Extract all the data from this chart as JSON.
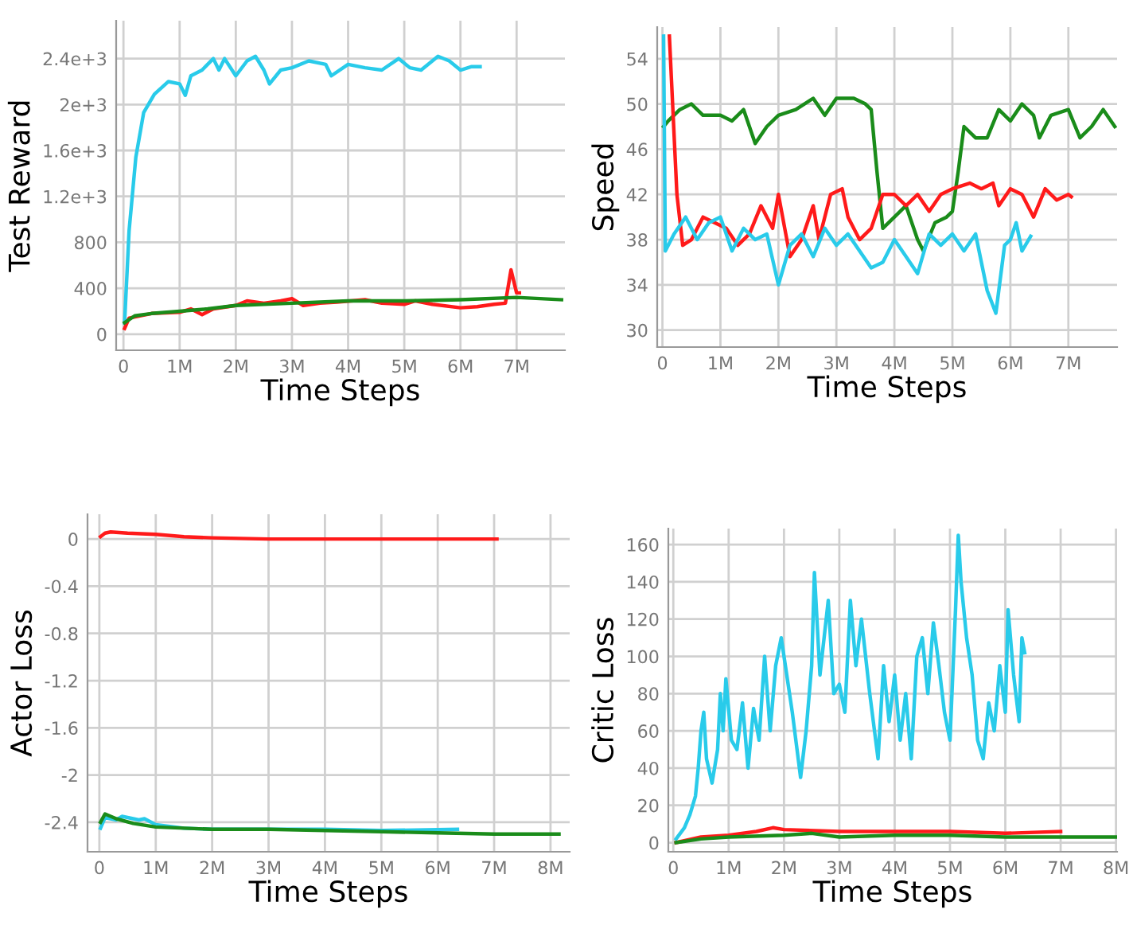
{
  "chart_data": [
    {
      "type": "line",
      "xlabel": "Time Steps",
      "ylabel": "Test Reward",
      "xlim": [
        -130000,
        7860000
      ],
      "ylim": [
        -140,
        2730
      ],
      "grid": true,
      "line_style": "solid",
      "xticks": [
        0,
        {
          "value": 1000000,
          "label": "1M"
        },
        {
          "value": 2000000,
          "label": "2M"
        },
        {
          "value": 3000000,
          "label": "3M"
        },
        {
          "value": 4000000,
          "label": "4M"
        },
        {
          "value": 5000000,
          "label": "5M"
        },
        {
          "value": 6000000,
          "label": "6M"
        },
        {
          "value": 7000000,
          "label": "7M"
        }
      ],
      "yticks": [
        0,
        400,
        800,
        {
          "value": 1200,
          "label": "1.2e+3"
        },
        {
          "value": 1600,
          "label": "1.6e+3"
        },
        {
          "value": 2000,
          "label": "2e+3"
        },
        {
          "value": 2400,
          "label": "2.4e+3"
        }
      ],
      "series": [
        {
          "color": "#29cbea",
          "x": [
            20000,
            100000,
            220000,
            360000,
            550000,
            800000,
            1000000,
            1100000,
            1200000,
            1400000,
            1600000,
            1700000,
            1800000,
            2000000,
            2200000,
            2350000,
            2500000,
            2600000,
            2800000,
            3000000,
            3300000,
            3600000,
            3700000,
            4000000,
            4300000,
            4600000,
            4900000,
            5100000,
            5300000,
            5600000,
            5800000,
            6000000,
            6200000,
            6350000
          ],
          "values": [
            100,
            900,
            1540,
            1930,
            2090,
            2200,
            2180,
            2080,
            2250,
            2300,
            2400,
            2300,
            2400,
            2250,
            2380,
            2420,
            2300,
            2180,
            2300,
            2320,
            2380,
            2350,
            2250,
            2350,
            2320,
            2300,
            2400,
            2320,
            2300,
            2420,
            2380,
            2300,
            2330,
            2330
          ]
        },
        {
          "color": "#ff1a1a",
          "x": [
            20000,
            100000,
            500000,
            1000000,
            1200000,
            1400000,
            1600000,
            2000000,
            2200000,
            2500000,
            2800000,
            3000000,
            3200000,
            3500000,
            3800000,
            4300000,
            4600000,
            5000000,
            5200000,
            5500000,
            6000000,
            6300000,
            6600000,
            6800000,
            6900000,
            7000000,
            7050000
          ],
          "values": [
            50,
            140,
            180,
            190,
            220,
            170,
            220,
            250,
            290,
            270,
            290,
            310,
            250,
            270,
            280,
            300,
            270,
            260,
            290,
            260,
            230,
            240,
            260,
            270,
            560,
            360,
            360
          ]
        },
        {
          "color": "#1a8c1a",
          "x": [
            20000,
            200000,
            500000,
            1000000,
            1500000,
            2000000,
            3000000,
            4000000,
            5000000,
            6000000,
            7000000,
            7800000
          ],
          "values": [
            100,
            160,
            180,
            200,
            220,
            250,
            270,
            290,
            290,
            300,
            320,
            300
          ]
        }
      ]
    },
    {
      "type": "line",
      "xlabel": "Time Steps",
      "ylabel": "Speed",
      "xlim": [
        -90000,
        7840000
      ],
      "ylim": [
        28.5,
        56.8
      ],
      "grid": true,
      "line_style": "solid",
      "xticks": [
        0,
        {
          "value": 1000000,
          "label": "1M"
        },
        {
          "value": 2000000,
          "label": "2M"
        },
        {
          "value": 3000000,
          "label": "3M"
        },
        {
          "value": 4000000,
          "label": "4M"
        },
        {
          "value": 5000000,
          "label": "5M"
        },
        {
          "value": 6000000,
          "label": "6M"
        },
        {
          "value": 7000000,
          "label": "7M"
        }
      ],
      "yticks": [
        30,
        34,
        38,
        42,
        46,
        50,
        54
      ],
      "series": [
        {
          "color": "#1a8c1a",
          "x": [
            20000,
            100000,
            300000,
            500000,
            700000,
            1000000,
            1200000,
            1400000,
            1600000,
            1800000,
            2000000,
            2300000,
            2600000,
            2800000,
            3000000,
            3300000,
            3500000,
            3600000,
            3700000,
            3800000,
            4000000,
            4200000,
            4400000,
            4500000,
            4700000,
            4900000,
            5000000,
            5100000,
            5200000,
            5400000,
            5600000,
            5800000,
            6000000,
            6200000,
            6400000,
            6500000,
            6700000,
            7000000,
            7200000,
            7400000,
            7600000,
            7800000
          ],
          "values": [
            48,
            48.5,
            49.5,
            50,
            49,
            49,
            48.5,
            49.5,
            46.5,
            48,
            49,
            49.5,
            50.5,
            49,
            50.5,
            50.5,
            50,
            49.5,
            44,
            39,
            40,
            41,
            38,
            37,
            39.5,
            40,
            40.5,
            44,
            48,
            47,
            47,
            49.5,
            48.5,
            50,
            49,
            47,
            49,
            49.5,
            47,
            48,
            49.5,
            48
          ]
        },
        {
          "color": "#ff1a1a",
          "x": [
            120000,
            250000,
            350000,
            500000,
            700000,
            900000,
            1100000,
            1300000,
            1500000,
            1700000,
            1900000,
            2000000,
            2200000,
            2400000,
            2600000,
            2700000,
            2900000,
            3100000,
            3200000,
            3400000,
            3600000,
            3800000,
            4000000,
            4200000,
            4400000,
            4600000,
            4800000,
            5000000,
            5300000,
            5500000,
            5700000,
            5800000,
            6000000,
            6200000,
            6400000,
            6600000,
            6800000,
            7000000,
            7050000
          ],
          "values": [
            56,
            42,
            37.5,
            38,
            40,
            39.5,
            39,
            37.5,
            38.5,
            41,
            39,
            42,
            36.5,
            38,
            41,
            38,
            42,
            42.5,
            40,
            38,
            39,
            42,
            42,
            41,
            42,
            40.5,
            42,
            42.5,
            43,
            42.5,
            43,
            41,
            42.5,
            42,
            40,
            42.5,
            41.5,
            42,
            41.8
          ]
        },
        {
          "color": "#29cbea",
          "x": [
            20000,
            50000,
            200000,
            400000,
            600000,
            800000,
            1000000,
            1200000,
            1400000,
            1600000,
            1800000,
            2000000,
            2200000,
            2400000,
            2600000,
            2800000,
            3000000,
            3200000,
            3400000,
            3600000,
            3800000,
            4000000,
            4200000,
            4400000,
            4600000,
            4800000,
            5000000,
            5200000,
            5400000,
            5600000,
            5750000,
            5900000,
            6000000,
            6100000,
            6200000,
            6350000
          ],
          "values": [
            56,
            37,
            38.5,
            40,
            38,
            39.5,
            40,
            37,
            39,
            38,
            38.5,
            34,
            37.5,
            38.5,
            36.5,
            39,
            37.5,
            38.5,
            37,
            35.5,
            36,
            38,
            36.5,
            35,
            38.5,
            37.5,
            38.5,
            37,
            38.5,
            33.5,
            31.5,
            37.5,
            38,
            39.5,
            37,
            38.3
          ]
        }
      ]
    },
    {
      "type": "line",
      "xlabel": "Time Steps",
      "ylabel": "Actor Loss",
      "xlim": [
        -210000,
        8340000
      ],
      "ylim": [
        -2.65,
        0.21
      ],
      "grid": true,
      "line_style": "solid",
      "xticks": [
        0,
        {
          "value": 1000000,
          "label": "1M"
        },
        {
          "value": 2000000,
          "label": "2M"
        },
        {
          "value": 3000000,
          "label": "3M"
        },
        {
          "value": 4000000,
          "label": "4M"
        },
        {
          "value": 5000000,
          "label": "5M"
        },
        {
          "value": 6000000,
          "label": "6M"
        },
        {
          "value": 7000000,
          "label": "7M"
        },
        {
          "value": 8000000,
          "label": "8M"
        }
      ],
      "yticks": [
        -2.4,
        -2,
        -1.6,
        -1.2,
        -0.8,
        -0.4,
        0
      ],
      "series": [
        {
          "color": "#ff1a1a",
          "x": [
            20000,
            100000,
            200000,
            500000,
            1000000,
            1500000,
            2000000,
            3000000,
            7050000
          ],
          "values": [
            0.02,
            0.05,
            0.06,
            0.05,
            0.04,
            0.02,
            0.01,
            0,
            0
          ]
        },
        {
          "color": "#29cbea",
          "x": [
            20000,
            100000,
            300000,
            400000,
            700000,
            800000,
            1000000,
            1500000,
            2000000,
            3000000,
            4000000,
            5000000,
            6350000
          ],
          "values": [
            -2.45,
            -2.36,
            -2.38,
            -2.35,
            -2.38,
            -2.37,
            -2.42,
            -2.45,
            -2.46,
            -2.46,
            -2.46,
            -2.47,
            -2.46
          ]
        },
        {
          "color": "#1a8c1a",
          "x": [
            20000,
            100000,
            300000,
            600000,
            1000000,
            2000000,
            3000000,
            4000000,
            5000000,
            6000000,
            7000000,
            8150000
          ],
          "values": [
            -2.4,
            -2.33,
            -2.37,
            -2.41,
            -2.44,
            -2.46,
            -2.46,
            -2.47,
            -2.48,
            -2.49,
            -2.5,
            -2.5
          ]
        }
      ]
    },
    {
      "type": "line",
      "xlabel": "Time Steps",
      "ylabel": "Critic Loss",
      "xlim": [
        -90000,
        8020000
      ],
      "ylim": [
        -4.9,
        168.6
      ],
      "grid": true,
      "line_style": "solid",
      "xticks": [
        0,
        {
          "value": 1000000,
          "label": "1M"
        },
        {
          "value": 2000000,
          "label": "2M"
        },
        {
          "value": 3000000,
          "label": "3M"
        },
        {
          "value": 4000000,
          "label": "4M"
        },
        {
          "value": 5000000,
          "label": "5M"
        },
        {
          "value": 6000000,
          "label": "6M"
        },
        {
          "value": 7000000,
          "label": "7M"
        },
        {
          "value": 8000000,
          "label": "8M"
        }
      ],
      "yticks": [
        0,
        20,
        40,
        60,
        80,
        100,
        120,
        140,
        160
      ],
      "series": [
        {
          "color": "#29cbea",
          "x": [
            50000,
            200000,
            300000,
            400000,
            450000,
            500000,
            550000,
            600000,
            700000,
            800000,
            850000,
            900000,
            950000,
            1050000,
            1150000,
            1250000,
            1350000,
            1450000,
            1550000,
            1650000,
            1750000,
            1850000,
            1950000,
            2050000,
            2150000,
            2300000,
            2400000,
            2500000,
            2550000,
            2650000,
            2800000,
            2900000,
            3000000,
            3100000,
            3200000,
            3300000,
            3400000,
            3550000,
            3700000,
            3800000,
            3900000,
            4000000,
            4100000,
            4200000,
            4300000,
            4400000,
            4500000,
            4600000,
            4700000,
            4800000,
            4900000,
            5000000,
            5100000,
            5150000,
            5200000,
            5300000,
            5400000,
            5500000,
            5600000,
            5700000,
            5800000,
            5900000,
            6000000,
            6050000,
            6150000,
            6250000,
            6300000,
            6350000
          ],
          "values": [
            2,
            8,
            15,
            25,
            40,
            60,
            70,
            45,
            32,
            50,
            80,
            60,
            88,
            55,
            50,
            75,
            40,
            72,
            55,
            100,
            60,
            95,
            110,
            90,
            70,
            35,
            60,
            95,
            145,
            90,
            130,
            80,
            85,
            70,
            130,
            95,
            120,
            80,
            45,
            95,
            65,
            90,
            55,
            80,
            45,
            100,
            110,
            80,
            118,
            95,
            70,
            55,
            125,
            165,
            140,
            110,
            90,
            55,
            45,
            75,
            60,
            95,
            70,
            125,
            90,
            65,
            110,
            102
          ]
        },
        {
          "color": "#ff1a1a",
          "x": [
            50000,
            500000,
            1000000,
            1500000,
            1800000,
            2000000,
            3000000,
            4000000,
            5000000,
            6000000,
            7000000
          ],
          "values": [
            0,
            3,
            4,
            6,
            8,
            7,
            6,
            6,
            6,
            5,
            6
          ]
        },
        {
          "color": "#1a8c1a",
          "x": [
            50000,
            500000,
            1000000,
            2000000,
            2500000,
            3000000,
            4000000,
            5000000,
            6000000,
            7000000,
            8000000
          ],
          "values": [
            0,
            2,
            3,
            4,
            5,
            3,
            4,
            4,
            3,
            3,
            3
          ]
        }
      ]
    }
  ]
}
